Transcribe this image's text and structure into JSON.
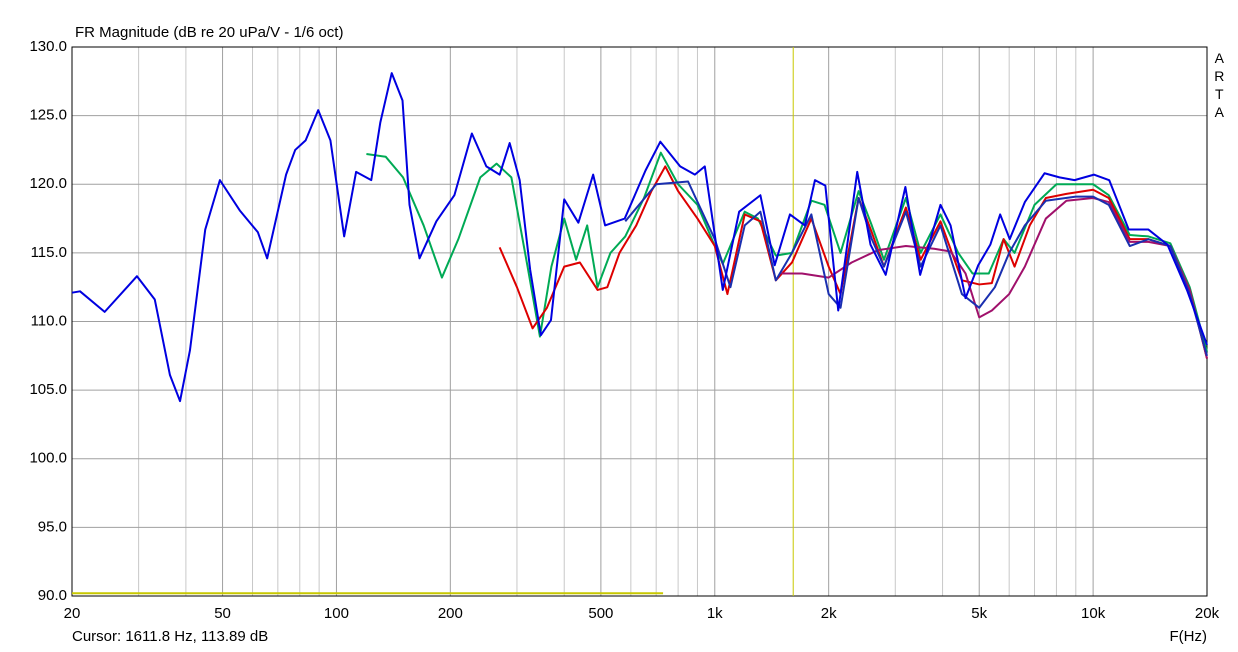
{
  "chart_data": {
    "type": "line",
    "title": "FR Magnitude (dB re 20 uPa/V - 1/6 oct)",
    "x_label": "F(Hz)",
    "watermark": "ARTA",
    "cursor": {
      "x": 1611.8,
      "label": "Cursor: 1611.8 Hz, 113.89 dB",
      "color": "#c8c800"
    },
    "x_log": true,
    "grid": true,
    "xlim": [
      20,
      20000
    ],
    "ylim": [
      90,
      130
    ],
    "xticks": [
      20,
      50,
      100,
      200,
      500,
      {
        "value": 1000,
        "label": "1k"
      },
      {
        "value": 2000,
        "label": "2k"
      },
      {
        "value": 5000,
        "label": "5k"
      },
      {
        "value": 10000,
        "label": "10k"
      },
      {
        "value": 20000,
        "label": "20k"
      }
    ],
    "x_minor_ticks": [
      30,
      40,
      60,
      70,
      80,
      90,
      300,
      400,
      600,
      700,
      800,
      900,
      3000,
      4000,
      6000,
      7000,
      8000,
      9000
    ],
    "yticks": [
      {
        "value": 90,
        "label": "90.0"
      },
      {
        "value": 95,
        "label": "95.0"
      },
      {
        "value": 100,
        "label": "100.0"
      },
      {
        "value": 105,
        "label": "105.0"
      },
      {
        "value": 110,
        "label": "110.0"
      },
      {
        "value": 115,
        "label": "115.0"
      },
      {
        "value": 120,
        "label": "120.0"
      },
      {
        "value": 125,
        "label": "125.0"
      },
      {
        "value": 130,
        "label": "130.0"
      }
    ],
    "series": [
      {
        "color": "#c8c800",
        "x": [
          20,
          730
        ],
        "values": [
          90.2,
          90.2
        ]
      },
      {
        "color": "#00aa55",
        "x": [
          120,
          135,
          150,
          170,
          190,
          210,
          240,
          265,
          290,
          320,
          345,
          370,
          400,
          430,
          460,
          490,
          530,
          580,
          650,
          720,
          800,
          900,
          1000,
          1050,
          1200,
          1300,
          1450,
          1600,
          1800,
          1950,
          2150,
          2400,
          2600,
          2800,
          3200,
          3500,
          3950,
          4400,
          4800,
          5300,
          5800,
          6200,
          7000,
          8000,
          10000,
          11000,
          12500,
          14000,
          16000,
          18000,
          20000
        ],
        "values": [
          122.2,
          122,
          120.5,
          117,
          113.2,
          116,
          120.5,
          121.5,
          120.5,
          114,
          108.9,
          114,
          117.5,
          114.5,
          117,
          112.5,
          115,
          116.2,
          119,
          122.3,
          120,
          118.5,
          115.5,
          114.2,
          118,
          117.5,
          114.8,
          115,
          118.8,
          118.5,
          115,
          119.5,
          117,
          114.5,
          119,
          115,
          117.8,
          115,
          113.5,
          113.5,
          116,
          115,
          118.5,
          120,
          120,
          119.2,
          116.3,
          116.2,
          115.7,
          112.5,
          107.8
        ]
      },
      {
        "color": "#dd0000",
        "x": [
          270,
          300,
          330,
          360,
          400,
          440,
          490,
          520,
          560,
          620,
          680,
          740,
          800,
          900,
          1000,
          1080,
          1200,
          1320,
          1450,
          1600,
          1800,
          2000,
          2150,
          2400,
          2600,
          2800,
          3200,
          3500,
          3950,
          4500,
          5000,
          5400,
          5800,
          6200,
          6800,
          7500,
          8500,
          10000,
          11000,
          12500,
          14000,
          16000,
          18000,
          20000
        ],
        "values": [
          115.4,
          112.5,
          109.5,
          111,
          114,
          114.3,
          112.3,
          112.5,
          115,
          117,
          119.5,
          121.3,
          119.5,
          117.5,
          115.5,
          112,
          117.8,
          117.3,
          113,
          114.3,
          117.5,
          114,
          112,
          119,
          116.5,
          114,
          118.3,
          114.5,
          117.3,
          113,
          112.7,
          112.8,
          116,
          114,
          117,
          119,
          119.3,
          119.6,
          119,
          116,
          116,
          115.5,
          112.3,
          107.3
        ]
      },
      {
        "color": "#a0106b",
        "x": [
          1500,
          1700,
          2000,
          2300,
          2700,
          3200,
          3800,
          4200,
          4600,
          5000,
          5400,
          6000,
          6600,
          7500,
          8500,
          10000,
          11000,
          12500,
          14000,
          16000,
          18000,
          20000
        ],
        "values": [
          113.5,
          113.5,
          113.2,
          114.3,
          115.2,
          115.5,
          115.3,
          115.1,
          113.5,
          110.3,
          110.8,
          112,
          114,
          117.5,
          118.8,
          119,
          118.7,
          115.8,
          115.8,
          115.5,
          112.3,
          107.3
        ]
      },
      {
        "color": "#1a2fb0",
        "x": [
          580,
          700,
          850,
          1000,
          1100,
          1200,
          1320,
          1450,
          1600,
          1800,
          2000,
          2150,
          2400,
          2600,
          2800,
          3200,
          3500,
          3950,
          4500,
          5000,
          5500,
          6000,
          6600,
          7500,
          9000,
          10000,
          11000,
          12500,
          14000,
          16000,
          18000,
          20000
        ],
        "values": [
          117.3,
          120,
          120.2,
          116,
          112.5,
          117,
          118,
          113,
          115,
          117.8,
          112,
          111,
          119,
          116,
          114,
          118,
          114,
          117,
          112,
          111,
          112.5,
          115,
          117,
          118.8,
          119.1,
          119.1,
          118.5,
          115.5,
          116,
          115.5,
          112,
          107.5
        ]
      },
      {
        "color": "#0000e0",
        "x": [
          20,
          21,
          24.4,
          29.7,
          33.1,
          36.3,
          38.6,
          41,
          45,
          49.2,
          55.5,
          62,
          65.6,
          73.6,
          77.8,
          82.9,
          89.5,
          96.4,
          104.8,
          112.7,
          123.6,
          130.6,
          140,
          149.5,
          156,
          165.8,
          183.7,
          205,
          228,
          249,
          270,
          287,
          305,
          325,
          347,
          369,
          400,
          436,
          477,
          513,
          578,
          656,
          718,
          810,
          886,
          941,
          1050,
          1160,
          1320,
          1440,
          1580,
          1730,
          1840,
          1960,
          2120,
          2380,
          2580,
          2830,
          3190,
          3490,
          3950,
          4200,
          4600,
          4970,
          5350,
          5680,
          6020,
          6600,
          7440,
          8150,
          8930,
          10060,
          11030,
          12420,
          14000,
          15720,
          17700,
          20000
        ],
        "values": [
          112.1,
          112.2,
          110.7,
          113.3,
          111.6,
          106.1,
          104.2,
          107.9,
          116.7,
          120.3,
          118.1,
          116.5,
          114.6,
          120.7,
          122.5,
          123.2,
          125.4,
          123.2,
          116.2,
          120.9,
          120.3,
          124.5,
          128.1,
          126.1,
          118.5,
          114.6,
          117.3,
          119.2,
          123.7,
          121.3,
          120.7,
          123,
          120.3,
          113.8,
          109,
          110.1,
          118.9,
          117.2,
          120.7,
          117,
          117.5,
          121,
          123.1,
          121.3,
          120.7,
          121.3,
          112.3,
          118,
          119.2,
          114.1,
          117.8,
          117,
          120.3,
          119.9,
          110.8,
          120.9,
          115.6,
          113.4,
          119.8,
          113.4,
          118.5,
          117,
          111.7,
          114.1,
          115.6,
          117.8,
          116,
          118.7,
          120.8,
          120.5,
          120.3,
          120.7,
          120.3,
          116.7,
          116.7,
          115.6,
          112.3,
          108.3
        ]
      }
    ]
  }
}
